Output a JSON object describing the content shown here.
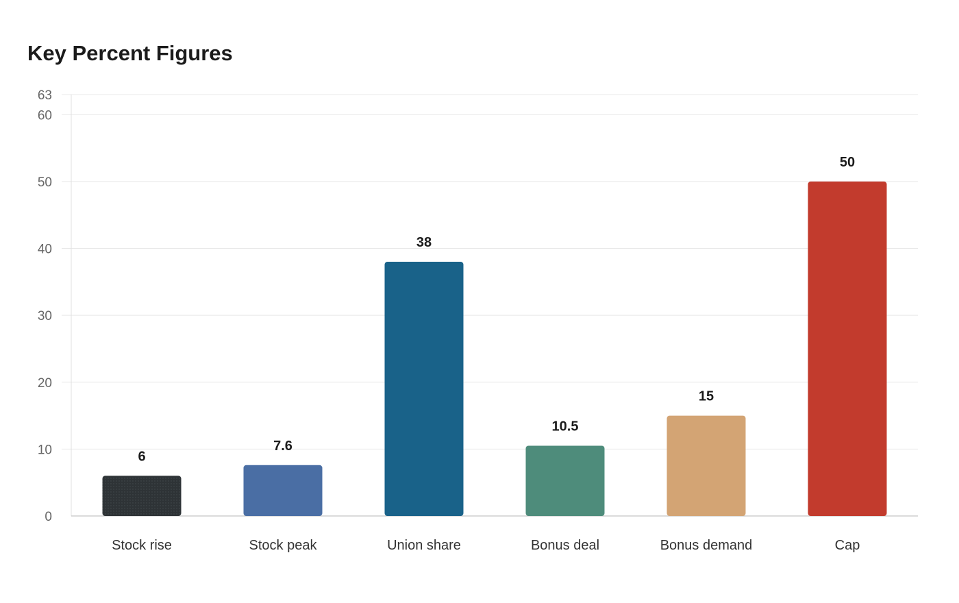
{
  "chart_data": {
    "type": "bar",
    "title": "Key Percent Figures",
    "xlabel": "",
    "ylabel": "",
    "categories": [
      "Stock rise",
      "Stock peak",
      "Union share",
      "Bonus deal",
      "Bonus demand",
      "Cap"
    ],
    "values": [
      6,
      7.6,
      38,
      10.5,
      15,
      50
    ],
    "value_labels": [
      "6",
      "7.6",
      "38",
      "10.5",
      "15",
      "50"
    ],
    "colors": [
      "#2e3336",
      "#4a6ea4",
      "#196289",
      "#4e8c7b",
      "#d3a474",
      "#c23b2d"
    ],
    "ylim": [
      0,
      63
    ],
    "yticks": [
      0,
      10,
      20,
      30,
      40,
      50,
      60,
      63
    ],
    "grid": true,
    "legend": "none"
  }
}
